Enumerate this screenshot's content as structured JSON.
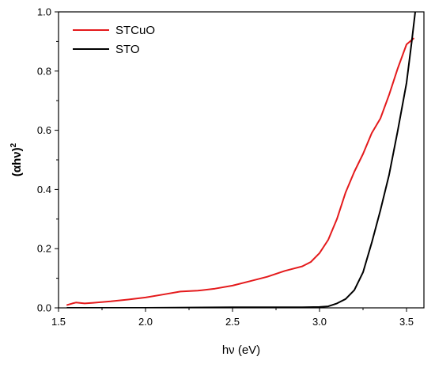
{
  "chart_data": {
    "type": "line",
    "title": "",
    "xlabel": "hν (eV)",
    "ylabel_base": "(αhν)",
    "ylabel_exp": "2",
    "xlim": [
      1.5,
      3.6
    ],
    "ylim": [
      0.0,
      1.0
    ],
    "xticks": [
      1.5,
      2.0,
      2.5,
      3.0,
      3.5
    ],
    "xtick_labels": [
      "1.5",
      "2.0",
      "2.5",
      "3.0",
      "3.5"
    ],
    "yticks": [
      0.0,
      0.2,
      0.4,
      0.6,
      0.8,
      1.0
    ],
    "ytick_labels": [
      "0.0",
      "0.2",
      "0.4",
      "0.6",
      "0.8",
      "1.0"
    ],
    "grid": false,
    "legend": "top-left",
    "series": [
      {
        "name": "STCuO",
        "color": "#e41a1c",
        "points": [
          [
            1.55,
            0.01
          ],
          [
            1.58,
            0.015
          ],
          [
            1.6,
            0.018
          ],
          [
            1.65,
            0.015
          ],
          [
            1.7,
            0.017
          ],
          [
            1.8,
            0.022
          ],
          [
            1.9,
            0.028
          ],
          [
            2.0,
            0.035
          ],
          [
            2.1,
            0.045
          ],
          [
            2.2,
            0.055
          ],
          [
            2.3,
            0.058
          ],
          [
            2.4,
            0.065
          ],
          [
            2.5,
            0.075
          ],
          [
            2.6,
            0.09
          ],
          [
            2.7,
            0.105
          ],
          [
            2.8,
            0.125
          ],
          [
            2.9,
            0.14
          ],
          [
            2.95,
            0.155
          ],
          [
            3.0,
            0.185
          ],
          [
            3.05,
            0.23
          ],
          [
            3.1,
            0.3
          ],
          [
            3.15,
            0.39
          ],
          [
            3.2,
            0.46
          ],
          [
            3.25,
            0.52
          ],
          [
            3.3,
            0.59
          ],
          [
            3.35,
            0.64
          ],
          [
            3.4,
            0.72
          ],
          [
            3.45,
            0.81
          ],
          [
            3.5,
            0.89
          ],
          [
            3.54,
            0.91
          ]
        ]
      },
      {
        "name": "STO",
        "color": "#000000",
        "points": [
          [
            1.55,
            0.0
          ],
          [
            2.0,
            0.0
          ],
          [
            2.5,
            0.002
          ],
          [
            2.9,
            0.002
          ],
          [
            3.0,
            0.003
          ],
          [
            3.05,
            0.005
          ],
          [
            3.1,
            0.015
          ],
          [
            3.15,
            0.03
          ],
          [
            3.2,
            0.06
          ],
          [
            3.25,
            0.12
          ],
          [
            3.3,
            0.22
          ],
          [
            3.35,
            0.33
          ],
          [
            3.4,
            0.45
          ],
          [
            3.45,
            0.6
          ],
          [
            3.5,
            0.76
          ],
          [
            3.53,
            0.9
          ],
          [
            3.55,
            1.0
          ]
        ]
      }
    ]
  }
}
